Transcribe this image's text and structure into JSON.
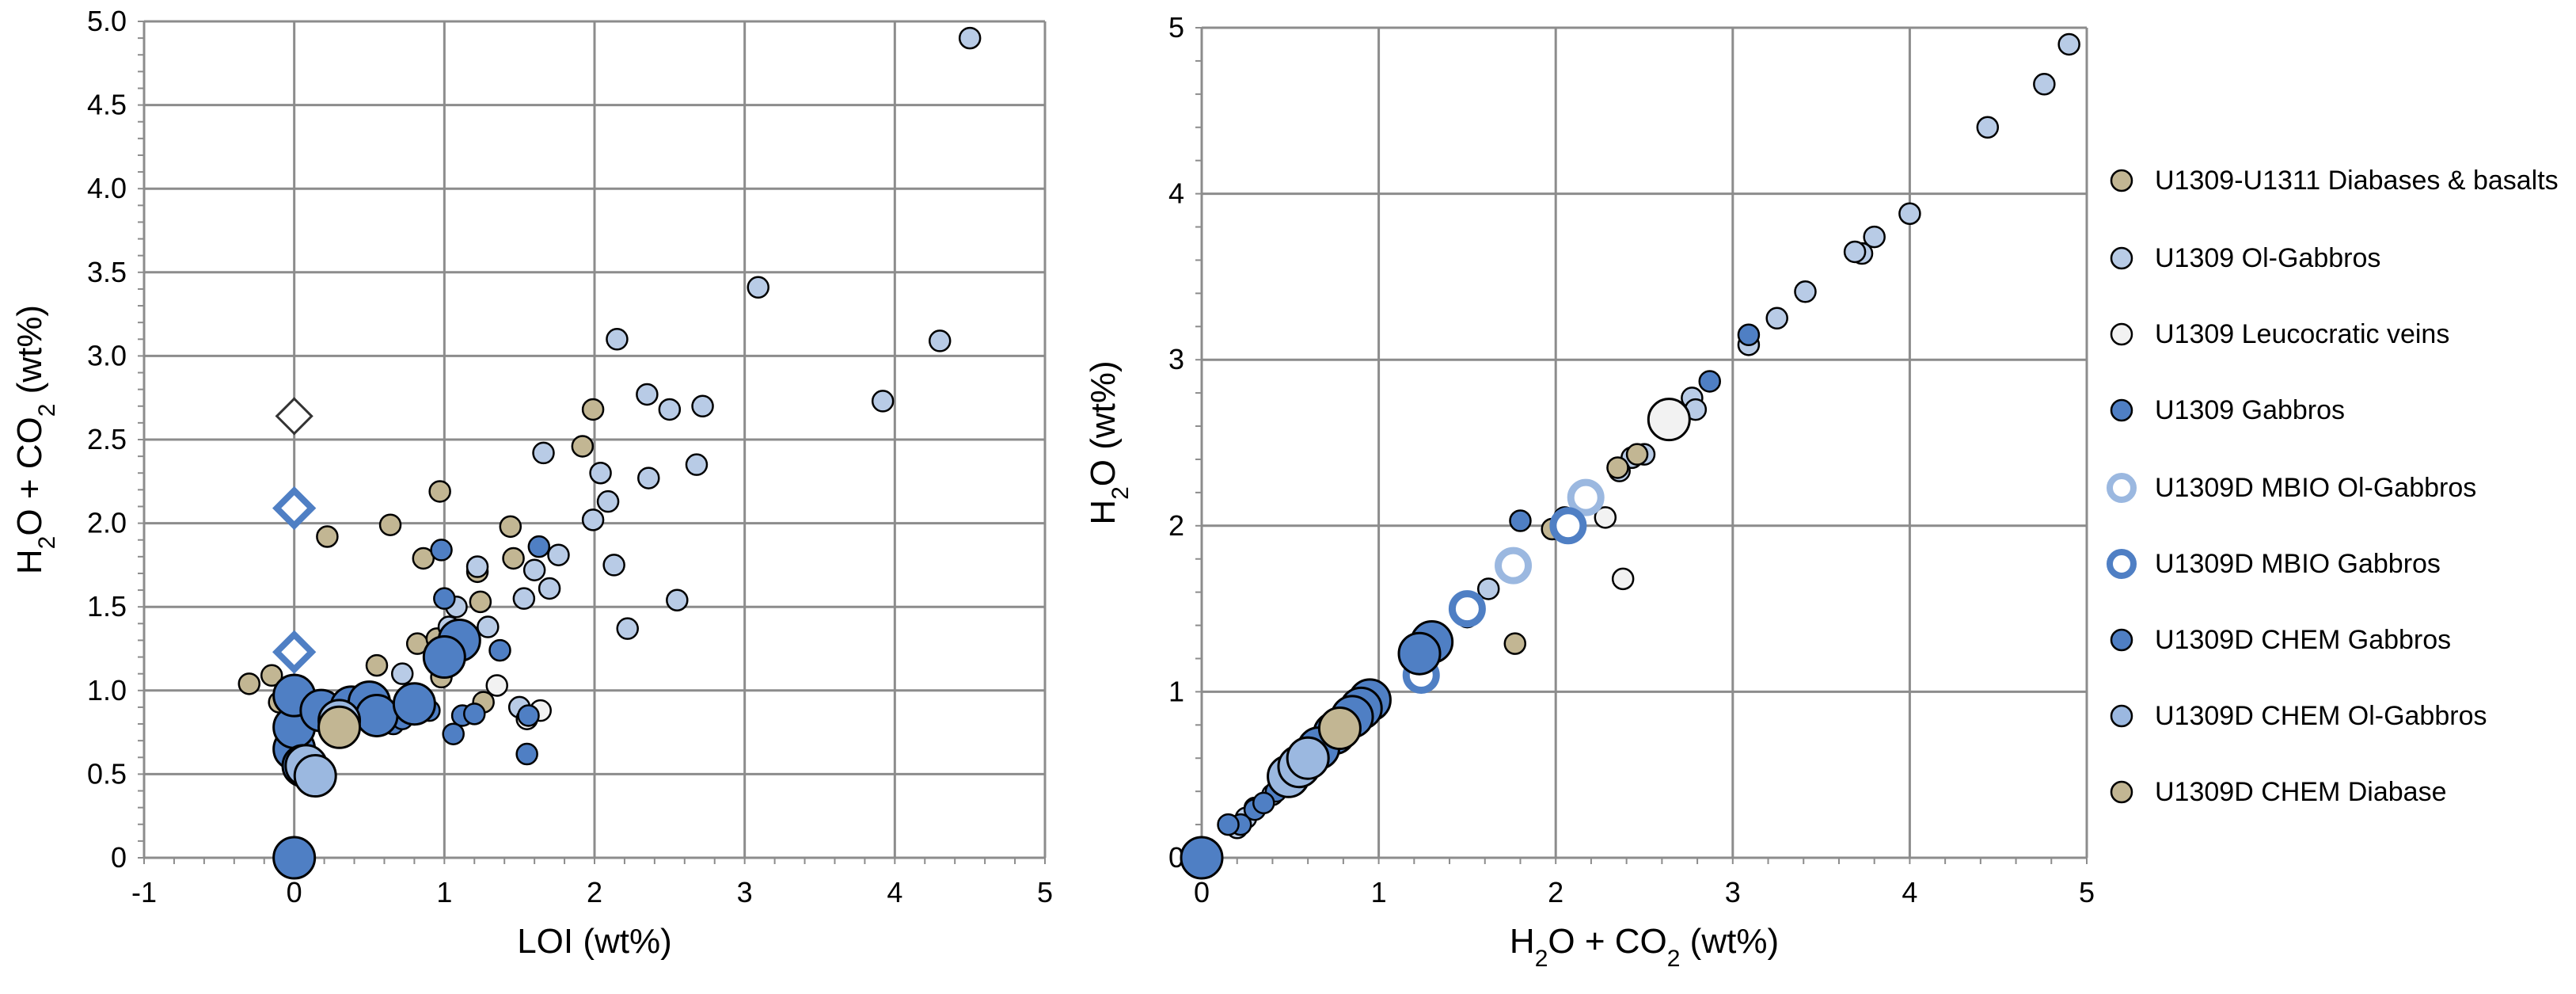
{
  "colors": {
    "diabase": "#c2b693",
    "olgabbro": "#b8cbe6",
    "leuco": "#f2f2f2",
    "gabbro": "#4f7fc4",
    "mbio_ol": "#9bb8e0",
    "mbio_gab": "#4f7fc4",
    "chem_gab": "#4f7fc4",
    "chem_ol": "#9bb8e0",
    "chem_dia": "#c2b693",
    "grid": "#8c8c8c"
  },
  "legend": [
    {
      "key": "diabase",
      "label": "U1309-U1311 Diabases & basalts",
      "icon": "filled-circle-icon",
      "color": "#c2b693"
    },
    {
      "key": "olgabbro",
      "label": "U1309 Ol-Gabbros",
      "icon": "filled-circle-icon",
      "color": "#b8cbe6"
    },
    {
      "key": "leuco",
      "label": "U1309 Leucocratic veins",
      "icon": "filled-circle-icon",
      "color": "#f2f2f2"
    },
    {
      "key": "gabbro",
      "label": "U1309 Gabbros",
      "icon": "filled-circle-icon",
      "color": "#4f7fc4"
    },
    {
      "key": "mbio_ol",
      "label": "U1309D MBIO Ol-Gabbros",
      "icon": "ring-icon",
      "color": "#9bb8e0"
    },
    {
      "key": "mbio_gab",
      "label": "U1309D MBIO Gabbros",
      "icon": "ring-icon",
      "color": "#4f7fc4"
    },
    {
      "key": "chem_gab",
      "label": "U1309D CHEM Gabbros",
      "icon": "filled-circle-icon",
      "color": "#4f7fc4"
    },
    {
      "key": "chem_ol",
      "label": "U1309D CHEM Ol-Gabbros",
      "icon": "filled-circle-icon",
      "color": "#9bb8e0"
    },
    {
      "key": "chem_dia",
      "label": "U1309D CHEM Diabase",
      "icon": "filled-circle-icon",
      "color": "#c2b693"
    }
  ],
  "chart_data": [
    {
      "type": "scatter",
      "xlabel": "LOI (wt%)",
      "ylabel": "H2O + CO2 (wt%)",
      "ylabel_parts": {
        "a": "H",
        "sub1": "2",
        "b": "O + CO",
        "sub2": "2",
        "c": " (wt%)"
      },
      "xlim": [
        -1,
        5
      ],
      "ylim": [
        0,
        5
      ],
      "xticks": [
        "-1",
        "0",
        "1",
        "2",
        "3",
        "4",
        "5"
      ],
      "yticks": [
        "0",
        "0.5",
        "1.0",
        "1.5",
        "2.0",
        "2.5",
        "3.0",
        "3.5",
        "4.0",
        "4.5",
        "5.0"
      ],
      "grid": true,
      "series": [
        {
          "key": "diabase",
          "size": "small",
          "points": [
            [
              -0.3,
              1.04
            ],
            [
              -0.15,
              1.09
            ],
            [
              -0.1,
              0.93
            ],
            [
              0.22,
              1.92
            ],
            [
              0.55,
              1.15
            ],
            [
              0.64,
              1.99
            ],
            [
              0.82,
              1.28
            ],
            [
              0.86,
              1.79
            ],
            [
              0.95,
              1.31
            ],
            [
              0.97,
              2.19
            ],
            [
              0.98,
              1.08
            ],
            [
              1.22,
              1.71
            ],
            [
              1.24,
              1.53
            ],
            [
              1.44,
              1.98
            ],
            [
              1.46,
              1.79
            ],
            [
              1.92,
              2.46
            ],
            [
              1.99,
              2.68
            ],
            [
              1.26,
              0.93
            ]
          ]
        },
        {
          "key": "olgabbro",
          "size": "small",
          "points": [
            [
              4.5,
              4.9
            ],
            [
              3.09,
              3.41
            ],
            [
              2.15,
              3.1
            ],
            [
              4.3,
              3.09
            ],
            [
              3.92,
              2.73
            ],
            [
              2.35,
              2.77
            ],
            [
              2.5,
              2.68
            ],
            [
              2.72,
              2.7
            ],
            [
              1.66,
              2.42
            ],
            [
              2.36,
              2.27
            ],
            [
              2.68,
              2.35
            ],
            [
              2.04,
              2.3
            ],
            [
              2.09,
              2.13
            ],
            [
              1.99,
              2.02
            ],
            [
              1.76,
              1.81
            ],
            [
              1.6,
              1.72
            ],
            [
              2.13,
              1.75
            ],
            [
              1.22,
              1.74
            ],
            [
              1.7,
              1.61
            ],
            [
              1.53,
              1.55
            ],
            [
              1.29,
              1.38
            ],
            [
              2.22,
              1.37
            ],
            [
              2.55,
              1.54
            ],
            [
              1.03,
              1.38
            ],
            [
              1.08,
              1.5
            ],
            [
              0.72,
              1.1
            ],
            [
              1.5,
              0.9
            ]
          ]
        },
        {
          "key": "leuco",
          "size": "small",
          "points": [
            [
              1.35,
              1.03
            ],
            [
              1.64,
              0.88
            ],
            [
              1.55,
              0.83
            ]
          ]
        },
        {
          "key": "gabbro",
          "size": "small",
          "points": [
            [
              1.63,
              1.86
            ],
            [
              1.37,
              1.24
            ],
            [
              1.55,
              0.62
            ],
            [
              1.56,
              0.85
            ],
            [
              0.98,
              1.84
            ],
            [
              1.0,
              1.55
            ],
            [
              1.12,
              0.85
            ],
            [
              1.06,
              0.74
            ],
            [
              1.2,
              0.86
            ],
            [
              0.66,
              0.8
            ],
            [
              0.72,
              0.83
            ],
            [
              0.82,
              0.86
            ],
            [
              0.9,
              0.88
            ],
            [
              0.5,
              0.85
            ]
          ]
        },
        {
          "key": "mbio_diamond",
          "size": "diamond",
          "points": []
        },
        {
          "key": "chem_gab",
          "size": "large",
          "points": [
            [
              0.0,
              0.0
            ],
            [
              0.0,
              0.65
            ],
            [
              0.0,
              0.78
            ],
            [
              0.0,
              0.97
            ],
            [
              0.06,
              0.55
            ],
            [
              0.18,
              0.88
            ],
            [
              0.38,
              0.9
            ],
            [
              0.5,
              0.93
            ],
            [
              0.55,
              0.85
            ],
            [
              0.8,
              0.92
            ],
            [
              1.1,
              1.3
            ],
            [
              1.0,
              1.2
            ]
          ]
        },
        {
          "key": "chem_ol",
          "size": "large",
          "points": [
            [
              0.08,
              0.55
            ],
            [
              0.14,
              0.49
            ],
            [
              0.3,
              0.82
            ]
          ]
        },
        {
          "key": "chem_dia",
          "size": "large",
          "points": [
            [
              0.3,
              0.78
            ]
          ]
        }
      ],
      "diamonds": [
        {
          "x": 0,
          "y": 2.64,
          "stroke": "#333333",
          "fill": "#ffffff"
        },
        {
          "x": 0,
          "y": 2.09,
          "stroke": "#4f7fc4",
          "fill": "#ffffff"
        },
        {
          "x": 0,
          "y": 1.23,
          "stroke": "#4f7fc4",
          "fill": "#ffffff"
        }
      ]
    },
    {
      "type": "scatter",
      "xlabel": "H2O + CO2 (wt%)",
      "xlabel_parts": {
        "a": "H",
        "sub1": "2",
        "b": "O + CO",
        "sub2": "2",
        "c": " (wt%)"
      },
      "ylabel": "H2O (wt%)",
      "ylabel_parts": {
        "a": "H",
        "sub1": "2",
        "b": "O (wt%)",
        "sub2": "",
        "c": ""
      },
      "xlim": [
        0,
        5
      ],
      "ylim": [
        0,
        5
      ],
      "xticks": [
        "0",
        "1",
        "2",
        "3",
        "4",
        "5"
      ],
      "yticks": [
        "0",
        "1",
        "2",
        "3",
        "4",
        "5"
      ],
      "grid": true,
      "series": [
        {
          "key": "olgabbro",
          "size": "small",
          "points": [
            [
              4.9,
              4.9
            ],
            [
              4.76,
              4.66
            ],
            [
              4.44,
              4.4
            ],
            [
              4.0,
              3.88
            ],
            [
              3.8,
              3.74
            ],
            [
              3.73,
              3.64
            ],
            [
              3.69,
              3.65
            ],
            [
              3.41,
              3.41
            ],
            [
              3.25,
              3.25
            ],
            [
              3.09,
              3.09
            ],
            [
              2.77,
              2.77
            ],
            [
              2.79,
              2.7
            ],
            [
              2.5,
              2.43
            ],
            [
              2.43,
              2.41
            ],
            [
              2.36,
              2.33
            ],
            [
              2.1,
              2.0
            ],
            [
              1.62,
              1.62
            ],
            [
              1.5,
              1.5
            ],
            [
              1.2,
              1.18
            ],
            [
              0.9,
              0.86
            ],
            [
              0.7,
              0.68
            ],
            [
              0.5,
              0.5
            ],
            [
              0.4,
              0.38
            ],
            [
              0.3,
              0.3
            ],
            [
              0.25,
              0.24
            ],
            [
              0.2,
              0.18
            ]
          ]
        },
        {
          "key": "diabase",
          "size": "small",
          "points": [
            [
              1.77,
              1.29
            ],
            [
              2.35,
              2.35
            ],
            [
              2.46,
              2.43
            ],
            [
              1.98,
              1.98
            ],
            [
              2.05,
              2.05
            ],
            [
              1.3,
              1.3
            ],
            [
              1.0,
              0.97
            ],
            [
              0.65,
              0.6
            ]
          ]
        },
        {
          "key": "leuco",
          "size": "small",
          "points": [
            [
              2.38,
              1.68
            ],
            [
              2.28,
              2.05
            ]
          ]
        },
        {
          "key": "gabbro",
          "size": "small",
          "points": [
            [
              3.09,
              3.15
            ],
            [
              2.87,
              2.87
            ],
            [
              1.8,
              2.03
            ],
            [
              1.5,
              1.45
            ],
            [
              1.2,
              1.17
            ],
            [
              0.85,
              0.82
            ],
            [
              0.62,
              0.6
            ],
            [
              0.42,
              0.4
            ],
            [
              0.3,
              0.29
            ],
            [
              0.22,
              0.2
            ],
            [
              0.15,
              0.2
            ],
            [
              0.35,
              0.33
            ],
            [
              0.55,
              0.52
            ]
          ]
        },
        {
          "key": "mbio_ol",
          "size": "ring",
          "points": [
            [
              2.17,
              2.17
            ],
            [
              1.76,
              1.76
            ]
          ]
        },
        {
          "key": "mbio_gab",
          "size": "ring",
          "points": [
            [
              2.07,
              2.0
            ],
            [
              1.5,
              1.5
            ],
            [
              1.24,
              1.1
            ]
          ]
        },
        {
          "key": "chem_gab",
          "size": "large",
          "points": [
            [
              0.0,
              0.0
            ],
            [
              1.3,
              1.3
            ],
            [
              1.23,
              1.23
            ],
            [
              0.95,
              0.95
            ],
            [
              0.9,
              0.9
            ],
            [
              0.85,
              0.85
            ],
            [
              0.75,
              0.75
            ],
            [
              0.66,
              0.66
            ],
            [
              0.6,
              0.6
            ]
          ]
        },
        {
          "key": "chem_ol",
          "size": "large",
          "points": [
            [
              0.49,
              0.49
            ],
            [
              0.55,
              0.55
            ],
            [
              0.6,
              0.6
            ]
          ]
        },
        {
          "key": "chem_dia",
          "size": "large",
          "points": [
            [
              0.78,
              0.78
            ]
          ]
        },
        {
          "key": "leuco",
          "size": "large",
          "points": [
            [
              2.64,
              2.64
            ]
          ]
        }
      ]
    }
  ]
}
